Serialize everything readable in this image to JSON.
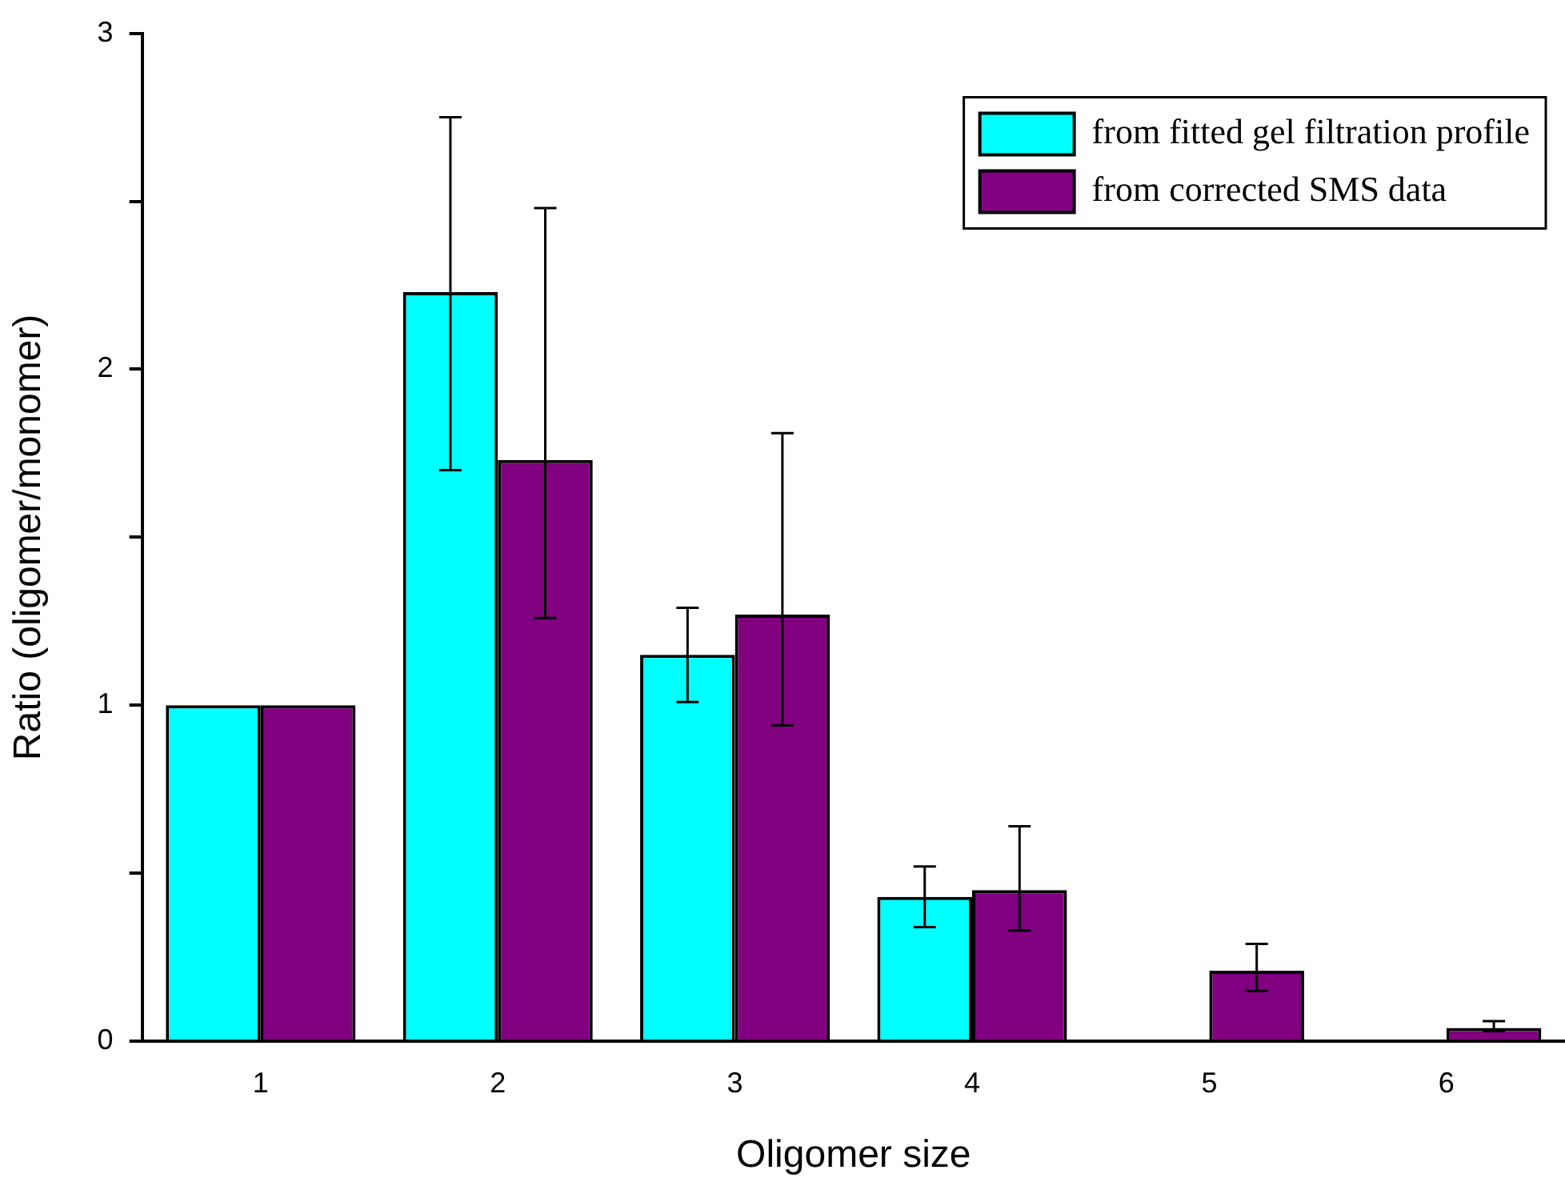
{
  "chart_data": {
    "type": "bar",
    "xlabel": "Oligomer size",
    "ylabel": "Ratio (oligomer/monomer)",
    "categories": [
      "1",
      "2",
      "3",
      "4",
      "5",
      "6"
    ],
    "series": [
      {
        "name": "from fitted gel filtration profile",
        "color": "#00ffff",
        "values": [
          1.0,
          2.23,
          1.15,
          0.43,
          null,
          null
        ],
        "errors": [
          null,
          [
            1.7,
            2.75
          ],
          [
            1.01,
            1.29
          ],
          [
            0.34,
            0.52
          ],
          null,
          null
        ]
      },
      {
        "name": "from corrected SMS data",
        "color": "#800080",
        "values": [
          1.0,
          1.73,
          1.27,
          0.45,
          0.21,
          0.04
        ],
        "errors": [
          null,
          [
            1.26,
            2.48
          ],
          [
            0.94,
            1.81
          ],
          [
            0.33,
            0.64
          ],
          [
            0.15,
            0.29
          ],
          [
            0.03,
            0.06
          ]
        ]
      }
    ],
    "ylim": [
      0,
      3
    ],
    "yticks": [
      0,
      {
        "value": 0.5,
        "label": null
      },
      1,
      {
        "value": 1.5,
        "label": null
      },
      2,
      {
        "value": 2.5,
        "label": null
      },
      3
    ],
    "grid": false,
    "legend": "top right"
  }
}
